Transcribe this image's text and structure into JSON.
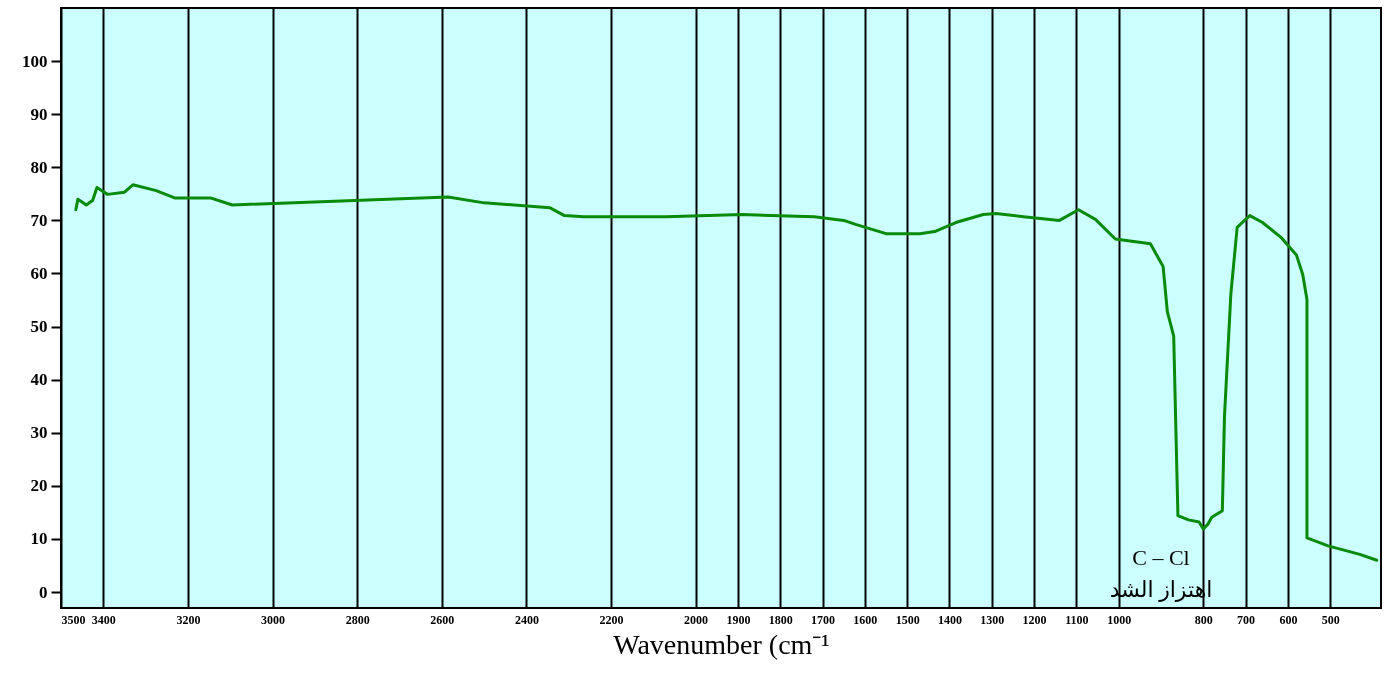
{
  "chart_data": {
    "type": "line",
    "xlabel": "Wavenumber (cm⁻¹",
    "x": [
      3465,
      3460,
      3440,
      3425,
      3415,
      3390,
      3350,
      3330,
      3275,
      3230,
      3145,
      3095,
      2585,
      2500,
      2345,
      2310,
      2265,
      2070,
      1890,
      1720,
      1650,
      1620,
      1550,
      1470,
      1435,
      1385,
      1320,
      1290,
      1225,
      1140,
      1095,
      1055,
      1008,
      925,
      895,
      885,
      870,
      860,
      835,
      810,
      800,
      790,
      780,
      755,
      750,
      735,
      720,
      705,
      690,
      660,
      615,
      580,
      565,
      555,
      555,
      505,
      430,
      390
    ],
    "series": [
      {
        "color": "#0a8a0a",
        "values": [
          72.0,
          74.0,
          72.9,
          73.8,
          76.2,
          74.9,
          75.3,
          76.7,
          75.6,
          74.2,
          74.2,
          72.9,
          74.4,
          73.3,
          72.4,
          70.9,
          70.7,
          70.7,
          71.1,
          70.7,
          70.0,
          69.2,
          67.5,
          67.5,
          67.9,
          69.6,
          71.1,
          71.3,
          70.7,
          70.0,
          72.0,
          70.2,
          66.5,
          65.6,
          61.3,
          52.8,
          48.2,
          14.4,
          13.6,
          13.2,
          11.9,
          12.7,
          14.1,
          15.3,
          33.0,
          56.0,
          68.7,
          69.8,
          70.9,
          69.6,
          66.7,
          63.5,
          59.8,
          55.1,
          10.2,
          8.7,
          7.1,
          6.0
        ]
      }
    ],
    "xlim": [
      3500,
      380
    ],
    "xticks": [
      3500,
      3400,
      3200,
      3000,
      2800,
      2600,
      2400,
      2200,
      2000,
      1900,
      1800,
      1700,
      1600,
      1500,
      1400,
      1300,
      1200,
      1100,
      1000,
      800,
      700,
      600,
      500
    ],
    "ylim": [
      -3,
      110
    ],
    "yticks": [
      0,
      10,
      20,
      30,
      40,
      50,
      60,
      70,
      80,
      90,
      100
    ],
    "grid": "x",
    "annotations": [
      "C – Cl",
      "اهتزاز الشد"
    ]
  }
}
